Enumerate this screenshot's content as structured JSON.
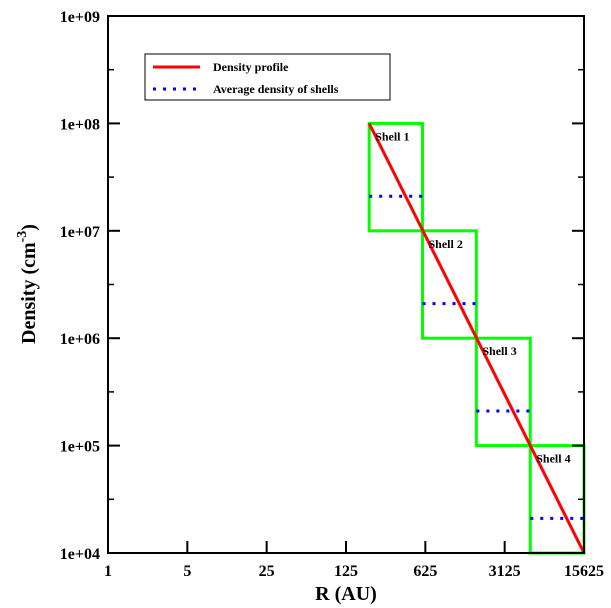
{
  "chart_data": {
    "type": "line",
    "xlabel": "R (AU)",
    "ylabel": "Density (cm",
    "ylabel_exponent": "-3",
    "ylabel_close": ")",
    "x_scale": "log5",
    "y_scale": "log",
    "xlim": [
      1,
      15625
    ],
    "ylim": [
      10000,
      1000000000
    ],
    "x_ticks": [
      1,
      5,
      25,
      125,
      625,
      3125,
      15625
    ],
    "x_tick_labels": [
      "1",
      "5",
      "25",
      "125",
      "625",
      "3125",
      "15625"
    ],
    "y_ticks": [
      10000,
      100000,
      1000000,
      10000000,
      100000000,
      1000000000
    ],
    "y_tick_labels": [
      "1e+04",
      "1e+05",
      "1e+06",
      "1e+07",
      "1e+08",
      "1e+09"
    ],
    "grid": false,
    "legend_position": "top-left",
    "series": [
      {
        "name": "Density profile",
        "color": "#ff0000",
        "style": "solid",
        "x": [
          200,
          15625
        ],
        "y": [
          100000000,
          10000
        ]
      },
      {
        "name": "Average density of shells",
        "color": "#0000ff",
        "style": "dotted",
        "segments": [
          {
            "x": [
              200,
              590
            ],
            "y": 21000000
          },
          {
            "x": [
              590,
              1760
            ],
            "y": 2100000
          },
          {
            "x": [
              1760,
              5250
            ],
            "y": 210000
          },
          {
            "x": [
              5250,
              15625
            ],
            "y": 21000
          }
        ]
      }
    ],
    "shells": [
      {
        "label": "Shell 1",
        "x": [
          200,
          590
        ],
        "y": [
          10000000,
          100000000
        ]
      },
      {
        "label": "Shell 2",
        "x": [
          590,
          1760
        ],
        "y": [
          1000000,
          10000000
        ]
      },
      {
        "label": "Shell 3",
        "x": [
          1760,
          5250
        ],
        "y": [
          100000,
          1000000
        ]
      },
      {
        "label": "Shell 4",
        "x": [
          5250,
          15625
        ],
        "y": [
          10000,
          100000
        ]
      }
    ],
    "shell_color": "#00ff00"
  }
}
